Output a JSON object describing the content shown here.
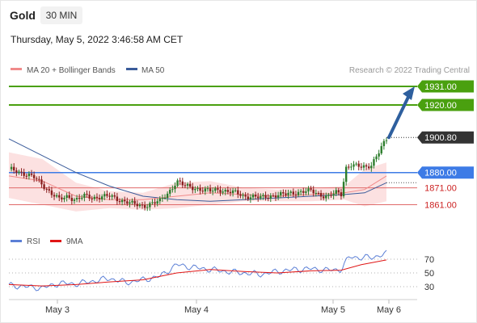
{
  "header": {
    "instrument": "Gold",
    "timeframe": "30 MIN",
    "datetime": "Thursday, May 5, 2022 3:46:58 AM CET",
    "credit": "Research © 2022 Trading Central"
  },
  "colors": {
    "ma20": "#f08a8a",
    "bollinger_fill": "#fbdcdc",
    "ma50": "#3a5b9a",
    "resistance": "#4aa00f",
    "current": "#333333",
    "pivot": "#3d7be6",
    "support": "#e06a6a",
    "arrow": "#2e5f9e",
    "bull": "#2d7d2d",
    "bear": "#8a1f1f",
    "rsi": "#5b7fd6",
    "rsi_ma": "#e01515"
  },
  "chart_data": [
    {
      "type": "candlestick",
      "title": "Gold",
      "x": [
        "May 3",
        "May 4",
        "May 5",
        "May 6"
      ],
      "legend": [
        "MA 20 + Bollinger Bands",
        "MA 50"
      ],
      "price_levels": [
        {
          "name": "resistance_2",
          "value": 1931.0,
          "label": "1931.00"
        },
        {
          "name": "resistance_1",
          "value": 1920.0,
          "label": "1920.00"
        },
        {
          "name": "last_price",
          "value": 1900.8,
          "label": "1900.80"
        },
        {
          "name": "pivot",
          "value": 1880.0,
          "label": "1880.00"
        },
        {
          "name": "support_1",
          "value": 1871.0,
          "label": "1871.00"
        },
        {
          "name": "support_2",
          "value": 1861.0,
          "label": "1861.00"
        }
      ],
      "ylim": [
        1847,
        1935
      ],
      "price_path": [
        [
          0,
          1882
        ],
        [
          5,
          1881
        ],
        [
          10,
          1879
        ],
        [
          15,
          1877
        ],
        [
          20,
          1873
        ],
        [
          25,
          1868
        ],
        [
          30,
          1864
        ],
        [
          35,
          1866
        ],
        [
          40,
          1864
        ],
        [
          45,
          1866
        ],
        [
          50,
          1865
        ],
        [
          55,
          1866
        ],
        [
          60,
          1866
        ],
        [
          65,
          1864
        ],
        [
          70,
          1863
        ],
        [
          75,
          1861
        ],
        [
          80,
          1860
        ],
        [
          85,
          1862
        ],
        [
          90,
          1863
        ],
        [
          95,
          1868
        ],
        [
          100,
          1875
        ],
        [
          105,
          1872
        ],
        [
          110,
          1871
        ],
        [
          115,
          1870
        ],
        [
          120,
          1869
        ],
        [
          125,
          1870
        ],
        [
          130,
          1869
        ],
        [
          135,
          1868
        ],
        [
          140,
          1866
        ],
        [
          145,
          1866
        ],
        [
          150,
          1865
        ],
        [
          155,
          1866
        ],
        [
          160,
          1867
        ],
        [
          165,
          1867
        ],
        [
          170,
          1868
        ],
        [
          175,
          1869
        ],
        [
          180,
          1869
        ],
        [
          185,
          1867
        ],
        [
          190,
          1866
        ],
        [
          195,
          1868
        ],
        [
          198,
          1867
        ],
        [
          201,
          1883
        ],
        [
          204,
          1885
        ],
        [
          207,
          1884
        ],
        [
          210,
          1883
        ],
        [
          213,
          1883
        ],
        [
          216,
          1885
        ],
        [
          219,
          1890
        ],
        [
          222,
          1895
        ],
        [
          225,
          1899
        ]
      ],
      "forecast_arrow": {
        "from_value": 1900.8,
        "to_value": 1931.0
      },
      "ma20": [
        [
          0,
          1878
        ],
        [
          20,
          1875
        ],
        [
          40,
          1866
        ],
        [
          60,
          1864
        ],
        [
          80,
          1864
        ],
        [
          100,
          1866
        ],
        [
          120,
          1868
        ],
        [
          140,
          1867
        ],
        [
          160,
          1866
        ],
        [
          180,
          1867
        ],
        [
          200,
          1868
        ],
        [
          212,
          1870
        ],
        [
          225,
          1878
        ]
      ],
      "bollinger_upper": [
        [
          0,
          1892
        ],
        [
          20,
          1888
        ],
        [
          40,
          1874
        ],
        [
          60,
          1869
        ],
        [
          80,
          1868
        ],
        [
          100,
          1874
        ],
        [
          120,
          1875
        ],
        [
          140,
          1871
        ],
        [
          160,
          1870
        ],
        [
          180,
          1871
        ],
        [
          200,
          1872
        ],
        [
          212,
          1882
        ],
        [
          225,
          1886
        ]
      ],
      "bollinger_lower": [
        [
          0,
          1865
        ],
        [
          20,
          1861
        ],
        [
          40,
          1857
        ],
        [
          60,
          1859
        ],
        [
          80,
          1858
        ],
        [
          100,
          1859
        ],
        [
          120,
          1861
        ],
        [
          140,
          1863
        ],
        [
          160,
          1863
        ],
        [
          180,
          1863
        ],
        [
          200,
          1864
        ],
        [
          212,
          1860
        ],
        [
          225,
          1863
        ]
      ],
      "ma50": [
        [
          0,
          1900
        ],
        [
          20,
          1890
        ],
        [
          40,
          1880
        ],
        [
          60,
          1872
        ],
        [
          80,
          1866
        ],
        [
          100,
          1864
        ],
        [
          120,
          1863
        ],
        [
          140,
          1864
        ],
        [
          160,
          1865
        ],
        [
          180,
          1866
        ],
        [
          200,
          1867
        ],
        [
          212,
          1868
        ],
        [
          225,
          1874
        ]
      ],
      "ma50_forecast_level": 1874
    },
    {
      "type": "line",
      "title": "RSI",
      "legend": [
        "RSI",
        "9MA"
      ],
      "yticks": [
        30,
        50,
        70
      ],
      "ylim": [
        15,
        85
      ],
      "rsi": [
        [
          0,
          32
        ],
        [
          10,
          30
        ],
        [
          20,
          28
        ],
        [
          30,
          35
        ],
        [
          40,
          34
        ],
        [
          50,
          38
        ],
        [
          60,
          42
        ],
        [
          70,
          36
        ],
        [
          80,
          40
        ],
        [
          90,
          45
        ],
        [
          100,
          62
        ],
        [
          110,
          58
        ],
        [
          120,
          55
        ],
        [
          130,
          52
        ],
        [
          140,
          50
        ],
        [
          150,
          48
        ],
        [
          160,
          52
        ],
        [
          170,
          55
        ],
        [
          180,
          56
        ],
        [
          190,
          54
        ],
        [
          198,
          55
        ],
        [
          203,
          74
        ],
        [
          210,
          72
        ],
        [
          217,
          73
        ],
        [
          225,
          78
        ]
      ],
      "rsi_ma": [
        [
          0,
          33
        ],
        [
          20,
          31
        ],
        [
          40,
          33
        ],
        [
          60,
          37
        ],
        [
          80,
          40
        ],
        [
          100,
          50
        ],
        [
          120,
          55
        ],
        [
          140,
          52
        ],
        [
          160,
          50
        ],
        [
          180,
          53
        ],
        [
          198,
          54
        ],
        [
          210,
          62
        ],
        [
          225,
          69
        ]
      ]
    }
  ]
}
